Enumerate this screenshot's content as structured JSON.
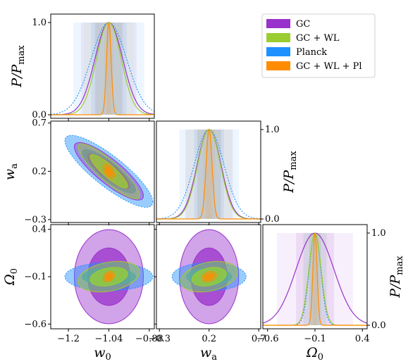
{
  "chart_data": {
    "type": "corner",
    "parameters": [
      {
        "name": "w_0",
        "label": "w",
        "sub": "0",
        "range": [
          -1.27,
          -0.86
        ],
        "ticks": [
          -1.2,
          -1.04,
          -0.88
        ],
        "tick_labels": [
          "−1.2",
          "−1.04",
          "−0.88"
        ]
      },
      {
        "name": "w_a",
        "label": "w",
        "sub": "a",
        "range": [
          -0.33,
          0.72
        ],
        "ticks": [
          -0.3,
          0.2,
          0.7
        ],
        "tick_labels": [
          "−0.3",
          "0.2",
          "0.7"
        ]
      },
      {
        "name": "Omega_0",
        "label": "Ω",
        "sub": "0",
        "range": [
          -0.65,
          0.45
        ],
        "ticks": [
          -0.6,
          -0.1,
          0.4
        ],
        "tick_labels": [
          "−0.6",
          "−0.1",
          "0.4"
        ]
      }
    ],
    "diag_ylabel": {
      "main": "P/P",
      "sub": "max"
    },
    "diag_ticks": [
      0.0,
      1.0
    ],
    "diag_tick_labels": [
      "0.0",
      "1.0"
    ],
    "series": [
      {
        "name": "GC",
        "legend": "GC",
        "color": "#9932cc",
        "mean": [
          -1.04,
          0.2,
          -0.1
        ],
        "sigma": [
          0.055,
          0.12,
          0.2
        ],
        "corr": {
          "w_0|w_a": -0.85,
          "w_0|Omega_0": 0.0,
          "w_a|Omega_0": 0.0
        }
      },
      {
        "name": "GC+WL",
        "legend": "GC + WL",
        "color": "#9acd32",
        "mean": [
          -1.04,
          0.2,
          -0.1
        ],
        "sigma": [
          0.049,
          0.115,
          0.065
        ],
        "corr": {
          "w_0|w_a": -0.88,
          "w_0|Omega_0": 0.3,
          "w_a|Omega_0": 0.3
        }
      },
      {
        "name": "Planck",
        "legend": "Planck",
        "color": "#1e90ff",
        "mean": [
          -1.04,
          0.2,
          -0.1
        ],
        "sigma": [
          0.07,
          0.15,
          0.06
        ],
        "corr": {
          "w_0|w_a": -0.85,
          "w_0|Omega_0": 0.0,
          "w_a|Omega_0": 0.0
        }
      },
      {
        "name": "GC+WL+Pl",
        "legend": "GC + WL + Pl",
        "color": "#ff8c00",
        "mean": [
          -1.04,
          0.2,
          -0.1
        ],
        "sigma": [
          0.009,
          0.03,
          0.022
        ],
        "corr": {
          "w_0|w_a": -0.5,
          "w_0|Omega_0": 0.3,
          "w_a|Omega_0": 0.3
        }
      }
    ],
    "legend_position": "top-right",
    "grid": false
  }
}
